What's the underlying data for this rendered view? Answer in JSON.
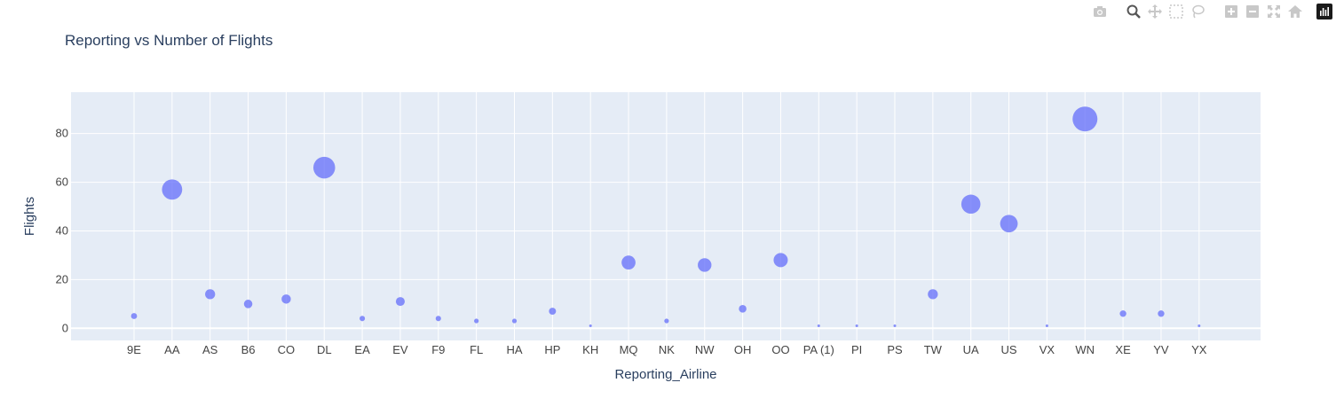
{
  "modebar": {
    "buttons": [
      {
        "name": "camera-icon"
      },
      {
        "name": "zoom-icon"
      },
      {
        "name": "pan-icon"
      },
      {
        "name": "box-select-icon"
      },
      {
        "name": "lasso-select-icon"
      },
      {
        "name": "zoom-in-icon"
      },
      {
        "name": "zoom-out-icon"
      },
      {
        "name": "autoscale-icon"
      },
      {
        "name": "reset-axes-home-icon"
      },
      {
        "name": "plotly-logo-icon"
      }
    ]
  },
  "chart_data": {
    "type": "scatter",
    "title": "Reporting vs Number of Flights",
    "xlabel": "Reporting_Airline",
    "ylabel": "Flights",
    "ylim": [
      -5,
      97
    ],
    "yticks": [
      0,
      20,
      40,
      60,
      80
    ],
    "grid": true,
    "marker_size_encodes": "Flights",
    "marker_color": "#636efa",
    "plot_bg": "#e5ecf6",
    "categories": [
      "9E",
      "AA",
      "AS",
      "B6",
      "CO",
      "DL",
      "EA",
      "EV",
      "F9",
      "FL",
      "HA",
      "HP",
      "KH",
      "MQ",
      "NK",
      "NW",
      "OH",
      "OO",
      "PA (1)",
      "PI",
      "PS",
      "TW",
      "UA",
      "US",
      "VX",
      "WN",
      "XE",
      "YV",
      "YX"
    ],
    "values": [
      5,
      57,
      14,
      10,
      12,
      66,
      4,
      11,
      4,
      3,
      3,
      7,
      1,
      27,
      3,
      26,
      8,
      28,
      1,
      1,
      1,
      14,
      51,
      43,
      1,
      86,
      6,
      6,
      1
    ]
  }
}
